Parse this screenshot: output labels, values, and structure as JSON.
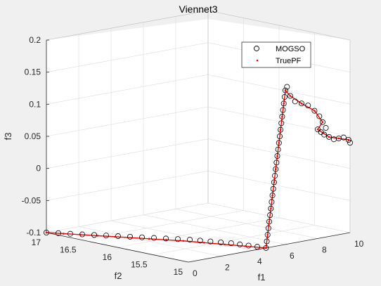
{
  "chart_data": {
    "type": "scatter",
    "title": "Viennet3",
    "xlabel": "f1",
    "ylabel": "f2",
    "zlabel": "f3",
    "xlim": [
      0,
      10
    ],
    "ylim": [
      15,
      17
    ],
    "zlim": [
      -0.1,
      0.2
    ],
    "xticks": [
      0,
      2,
      4,
      6,
      8,
      10
    ],
    "yticks": [
      15,
      15.5,
      16,
      16.5,
      17
    ],
    "zticks": [
      -0.1,
      -0.05,
      0,
      0.05,
      0.1,
      0.15,
      0.2
    ],
    "xtick_labels": [
      "0",
      "2",
      "4",
      "6",
      "8",
      "10"
    ],
    "ytick_labels": [
      "15",
      "15.5",
      "16",
      "16.5",
      "17"
    ],
    "ztick_labels": [
      "-0.1",
      "-0.05",
      "0",
      "0.05",
      "0.1",
      "0.15",
      "0.2"
    ],
    "grid": true,
    "legend": "top-right",
    "series": [
      {
        "name": "MOGSO",
        "marker": "circle",
        "color": "#000000",
        "points": [
          [
            0.0,
            17.0,
            -0.1
          ],
          [
            0.3,
            16.9,
            -0.1
          ],
          [
            0.6,
            16.8,
            -0.1
          ],
          [
            0.9,
            16.7,
            -0.1
          ],
          [
            1.2,
            16.6,
            -0.1
          ],
          [
            1.5,
            16.5,
            -0.1
          ],
          [
            1.8,
            16.4,
            -0.1
          ],
          [
            2.1,
            16.3,
            -0.1
          ],
          [
            2.4,
            16.2,
            -0.1
          ],
          [
            2.7,
            16.1,
            -0.1
          ],
          [
            3.0,
            16.0,
            -0.1
          ],
          [
            3.3,
            15.9,
            -0.1
          ],
          [
            3.6,
            15.8,
            -0.1
          ],
          [
            3.8,
            15.7,
            -0.1
          ],
          [
            4.0,
            15.6,
            -0.1
          ],
          [
            4.2,
            15.5,
            -0.1
          ],
          [
            4.4,
            15.4,
            -0.1
          ],
          [
            4.5,
            15.3,
            -0.1
          ],
          [
            4.6,
            15.2,
            -0.1
          ],
          [
            4.7,
            15.1,
            -0.1
          ],
          [
            4.8,
            15.0,
            -0.1
          ],
          [
            4.85,
            15.0,
            -0.09
          ],
          [
            4.9,
            15.0,
            -0.08
          ],
          [
            4.95,
            15.0,
            -0.07
          ],
          [
            5.0,
            15.0,
            -0.06
          ],
          [
            5.05,
            15.0,
            -0.05
          ],
          [
            5.1,
            15.0,
            -0.04
          ],
          [
            5.15,
            15.0,
            -0.03
          ],
          [
            5.2,
            15.0,
            -0.02
          ],
          [
            5.25,
            15.0,
            -0.01
          ],
          [
            5.3,
            15.0,
            0.0
          ],
          [
            5.35,
            15.0,
            0.01
          ],
          [
            5.4,
            15.0,
            0.02
          ],
          [
            5.45,
            15.0,
            0.03
          ],
          [
            5.5,
            15.0,
            0.04
          ],
          [
            5.55,
            15.0,
            0.05
          ],
          [
            5.6,
            15.0,
            0.06
          ],
          [
            5.65,
            15.0,
            0.07
          ],
          [
            5.7,
            15.0,
            0.08
          ],
          [
            5.75,
            15.0,
            0.09
          ],
          [
            5.8,
            15.0,
            0.1
          ],
          [
            5.85,
            15.0,
            0.11
          ],
          [
            5.9,
            15.0,
            0.12
          ],
          [
            5.95,
            15.0,
            0.13
          ],
          [
            6.0,
            15.0,
            0.14
          ],
          [
            6.1,
            15.0,
            0.145
          ],
          [
            6.3,
            15.0,
            0.13
          ],
          [
            6.6,
            15.0,
            0.12
          ],
          [
            7.0,
            15.0,
            0.115
          ],
          [
            7.4,
            15.0,
            0.11
          ],
          [
            7.8,
            15.0,
            0.1
          ],
          [
            8.1,
            15.0,
            0.09
          ],
          [
            8.3,
            15.0,
            0.08
          ],
          [
            8.5,
            15.0,
            0.07
          ],
          [
            8.2,
            15.0,
            0.065
          ],
          [
            8.0,
            15.0,
            0.07
          ],
          [
            8.4,
            15.0,
            0.06
          ],
          [
            8.7,
            15.0,
            0.055
          ],
          [
            9.0,
            15.0,
            0.05
          ],
          [
            9.3,
            15.0,
            0.05
          ],
          [
            9.6,
            15.0,
            0.05
          ],
          [
            9.9,
            15.0,
            0.045
          ],
          [
            10.0,
            15.0,
            0.04
          ]
        ]
      },
      {
        "name": "TruePF",
        "marker": "dot",
        "color": "#ff0000",
        "points": [
          [
            0.0,
            17.0,
            -0.1
          ],
          [
            0.4,
            16.85,
            -0.1
          ],
          [
            0.8,
            16.7,
            -0.1
          ],
          [
            1.2,
            16.55,
            -0.1
          ],
          [
            1.6,
            16.4,
            -0.1
          ],
          [
            2.0,
            16.25,
            -0.1
          ],
          [
            2.4,
            16.1,
            -0.1
          ],
          [
            2.8,
            15.95,
            -0.1
          ],
          [
            3.2,
            15.8,
            -0.1
          ],
          [
            3.6,
            15.6,
            -0.1
          ],
          [
            4.0,
            15.4,
            -0.1
          ],
          [
            4.4,
            15.2,
            -0.1
          ],
          [
            4.8,
            15.0,
            -0.1
          ],
          [
            4.9,
            15.0,
            -0.08
          ],
          [
            5.0,
            15.0,
            -0.06
          ],
          [
            5.1,
            15.0,
            -0.04
          ],
          [
            5.2,
            15.0,
            -0.02
          ],
          [
            5.3,
            15.0,
            0.0
          ],
          [
            5.4,
            15.0,
            0.02
          ],
          [
            5.5,
            15.0,
            0.04
          ],
          [
            5.6,
            15.0,
            0.06
          ],
          [
            5.7,
            15.0,
            0.08
          ],
          [
            5.8,
            15.0,
            0.1
          ],
          [
            5.9,
            15.0,
            0.12
          ],
          [
            6.0,
            15.0,
            0.14
          ],
          [
            6.3,
            15.0,
            0.13
          ],
          [
            7.0,
            15.0,
            0.115
          ],
          [
            7.8,
            15.0,
            0.1
          ],
          [
            8.3,
            15.0,
            0.08
          ],
          [
            8.0,
            15.0,
            0.07
          ],
          [
            8.7,
            15.0,
            0.055
          ],
          [
            9.3,
            15.0,
            0.05
          ],
          [
            9.9,
            15.0,
            0.045
          ]
        ]
      }
    ]
  }
}
